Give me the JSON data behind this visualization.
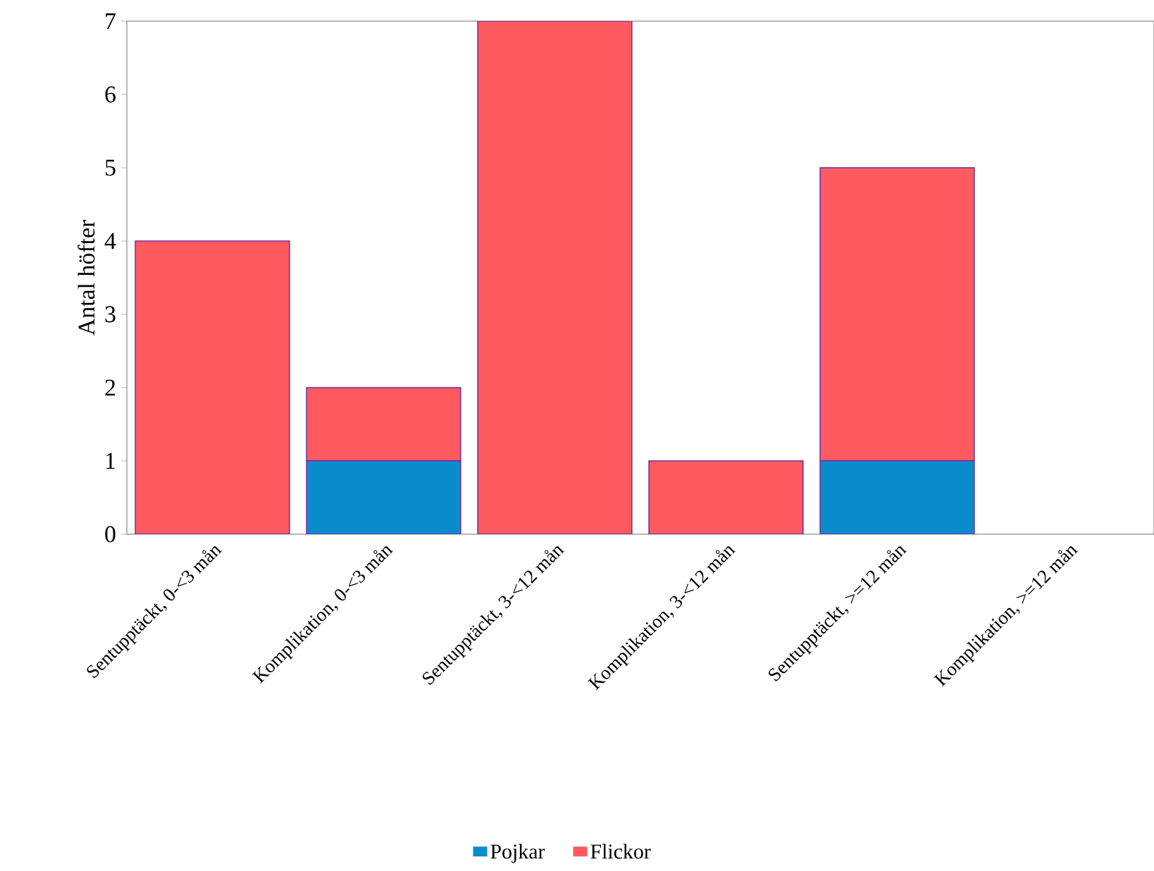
{
  "chart_data": {
    "type": "bar",
    "stacked": true,
    "ylabel": "Antal höfter",
    "categories": [
      "Sentupptäckt, 0-<3 mån",
      "Komplikation, 0-<3 mån",
      "Sentupptäckt, 3-<12 mån",
      "Komplikation, 3-<12 mån",
      "Sentupptäckt, >=12 mån",
      "Komplikation, >=12 mån"
    ],
    "series": [
      {
        "name": "Pojkar",
        "color": "#0a8ccc",
        "values": [
          0,
          1,
          0,
          0,
          1,
          0
        ]
      },
      {
        "name": "Flickor",
        "color": "#ff5a5f",
        "values": [
          4,
          1,
          7,
          1,
          4,
          0
        ]
      }
    ],
    "ylim": [
      0,
      7
    ],
    "yticks": [
      0,
      1,
      2,
      3,
      4,
      5,
      6,
      7
    ],
    "grid": false,
    "legend": "bottom"
  }
}
